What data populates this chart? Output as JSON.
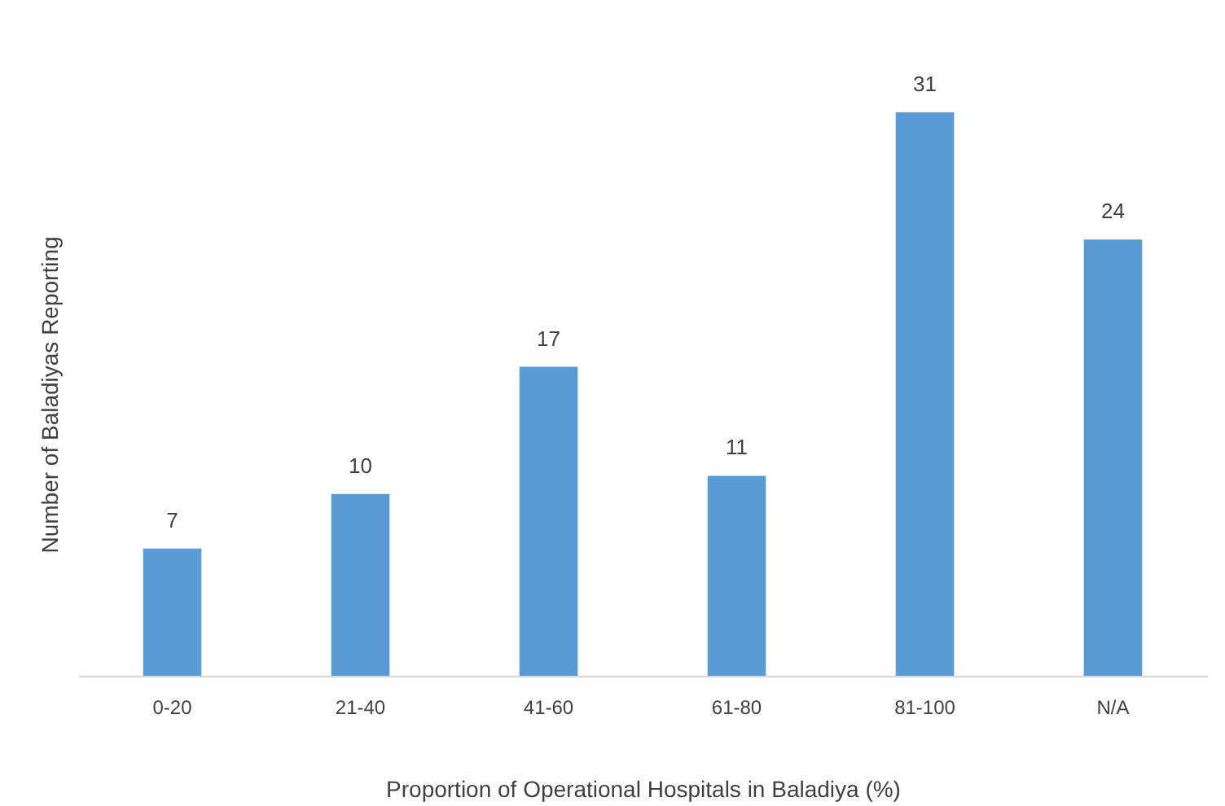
{
  "chart_data": {
    "type": "bar",
    "xlabel": "Proportion of Operational Hospitals in Baladiya (%)",
    "ylabel": "Number of Baladiyas Reporting",
    "categories": [
      "0-20",
      "21-40",
      "41-60",
      "61-80",
      "81-100",
      "N/A"
    ],
    "values": [
      7,
      10,
      17,
      11,
      31,
      24
    ],
    "color": "#5b9bd5",
    "data_labels": true,
    "tick_labels": "x",
    "grid": false
  }
}
